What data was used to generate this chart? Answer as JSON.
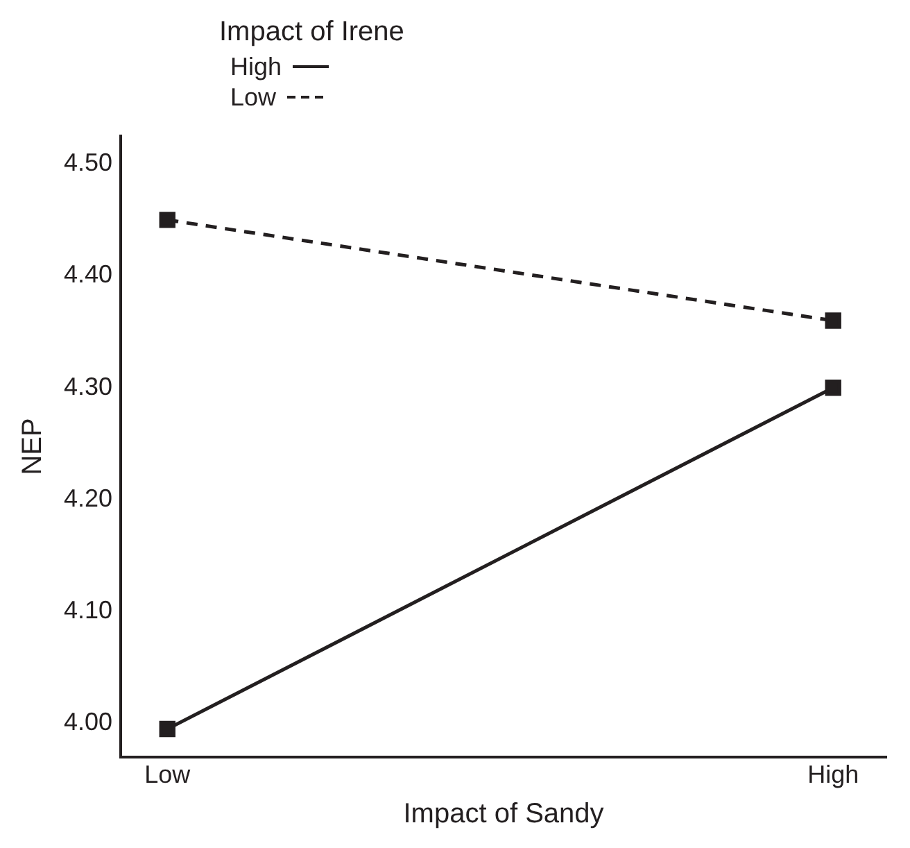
{
  "chart_data": {
    "type": "line",
    "xlabel": "Impact of Sandy",
    "ylabel": "NEP",
    "legend_title": "Impact of Irene",
    "categories": [
      "Low",
      "High"
    ],
    "series": [
      {
        "name": "High",
        "color": "#231f20",
        "values": [
          3.995,
          4.3
        ],
        "line_style": "solid"
      },
      {
        "name": "Low",
        "color": "#231f20",
        "values": [
          4.45,
          4.36
        ],
        "line_style": "dashed"
      }
    ],
    "ylim": [
      3.97,
      4.525
    ],
    "yticks": [
      {
        "value": 4.0,
        "label": "4.00"
      },
      {
        "value": 4.1,
        "label": "4.10"
      },
      {
        "value": 4.2,
        "label": "4.20"
      },
      {
        "value": 4.3,
        "label": "4.30"
      },
      {
        "value": 4.4,
        "label": "4.40"
      },
      {
        "value": 4.5,
        "label": "4.50"
      }
    ],
    "grid": false,
    "legend": "top left",
    "marker": "square"
  }
}
